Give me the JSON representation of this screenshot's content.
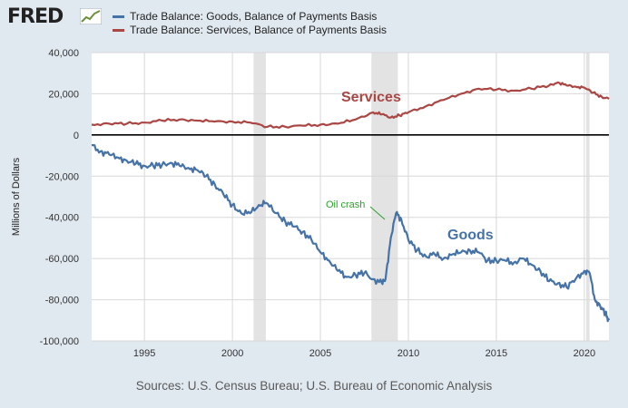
{
  "brand": {
    "logo_text": "FRED",
    "logo_icon": "line-chart-icon"
  },
  "legend": [
    {
      "label": "Trade Balance: Goods, Balance of Payments Basis",
      "color": "#4572a7"
    },
    {
      "label": "Trade Balance: Services, Balance of Payments Basis",
      "color": "#aa4643"
    }
  ],
  "source": "Sources: U.S. Census Bureau; U.S. Bureau of Economic Analysis",
  "chart_data": {
    "type": "line",
    "ylabel": "Millions of Dollars",
    "xlabel": "",
    "xlim": [
      1992.0,
      2021.4
    ],
    "ylim": [
      -100000,
      40000
    ],
    "yticks": [
      40000,
      20000,
      0,
      -20000,
      -40000,
      -60000,
      -80000,
      -100000
    ],
    "ytick_labels": [
      "40,000",
      "20,000",
      "0",
      "-20,000",
      "-40,000",
      "-60,000",
      "-80,000",
      "-100,000"
    ],
    "xticks": [
      1995,
      2000,
      2005,
      2010,
      2015,
      2020
    ],
    "xtick_labels": [
      "1995",
      "2000",
      "2005",
      "2010",
      "2015",
      "2020"
    ],
    "grid": true,
    "recessions": [
      [
        2001.2,
        2001.9
      ],
      [
        2007.9,
        2009.4
      ],
      [
        2020.1,
        2020.3
      ]
    ],
    "series": [
      {
        "key": "goods",
        "color": "#4572a7",
        "x": [
          1992.0,
          1992.5,
          1993.0,
          1993.5,
          1994.0,
          1994.5,
          1995.0,
          1995.5,
          1996.0,
          1996.5,
          1997.0,
          1997.5,
          1998.0,
          1998.5,
          1999.0,
          1999.5,
          2000.0,
          2000.5,
          2001.0,
          2001.5,
          2001.9,
          2002.5,
          2003.0,
          2003.5,
          2004.0,
          2004.5,
          2005.0,
          2005.5,
          2006.0,
          2006.5,
          2007.0,
          2007.5,
          2008.0,
          2008.5,
          2008.7,
          2009.0,
          2009.3,
          2009.6,
          2010.0,
          2010.5,
          2011.0,
          2011.5,
          2012.0,
          2012.5,
          2013.0,
          2013.5,
          2014.0,
          2014.5,
          2015.0,
          2015.5,
          2016.0,
          2016.5,
          2017.0,
          2017.5,
          2018.0,
          2018.5,
          2019.0,
          2019.5,
          2020.0,
          2020.3,
          2020.6,
          2020.9,
          2021.2,
          2021.4
        ],
        "y": [
          -5000,
          -8000,
          -9500,
          -11000,
          -12500,
          -14000,
          -15000,
          -15000,
          -14500,
          -13500,
          -15000,
          -16000,
          -17000,
          -20000,
          -24000,
          -29000,
          -34000,
          -38000,
          -38000,
          -34000,
          -33000,
          -38000,
          -42000,
          -44500,
          -47000,
          -51000,
          -57000,
          -61000,
          -66000,
          -69000,
          -68000,
          -67000,
          -70000,
          -72000,
          -70000,
          -50000,
          -38000,
          -41000,
          -51000,
          -56000,
          -59000,
          -58000,
          -60000,
          -58000,
          -57000,
          -56000,
          -57000,
          -61000,
          -61000,
          -61000,
          -62000,
          -60000,
          -63000,
          -66000,
          -71000,
          -72000,
          -74000,
          -70000,
          -66000,
          -67000,
          -80000,
          -83000,
          -87000,
          -90000
        ]
      },
      {
        "key": "services",
        "color": "#aa4643",
        "x": [
          1992.0,
          1993.0,
          1994.0,
          1995.0,
          1996.0,
          1997.0,
          1998.0,
          1999.0,
          2000.0,
          2001.0,
          2002.0,
          2003.0,
          2004.0,
          2005.0,
          2006.0,
          2007.0,
          2008.0,
          2008.5,
          2009.0,
          2009.5,
          2010.0,
          2011.0,
          2012.0,
          2013.0,
          2014.0,
          2015.0,
          2016.0,
          2017.0,
          2018.0,
          2018.5,
          2019.0,
          2019.5,
          2020.0,
          2020.5,
          2021.0,
          2021.4
        ],
        "y": [
          5000,
          5500,
          5500,
          6000,
          7000,
          7500,
          7000,
          6500,
          6500,
          6000,
          4000,
          4000,
          4500,
          5000,
          5500,
          7500,
          11000,
          10000,
          8500,
          9500,
          11000,
          14000,
          17000,
          20000,
          22500,
          22000,
          21500,
          22500,
          24000,
          25500,
          24000,
          23500,
          23000,
          20500,
          18500,
          17500
        ]
      }
    ],
    "annotations": [
      {
        "text": "Services",
        "color": "#aa4643"
      },
      {
        "text": "Goods",
        "color": "#4572a7"
      },
      {
        "text": "Oil crash",
        "color": "#2ca02c"
      }
    ]
  }
}
